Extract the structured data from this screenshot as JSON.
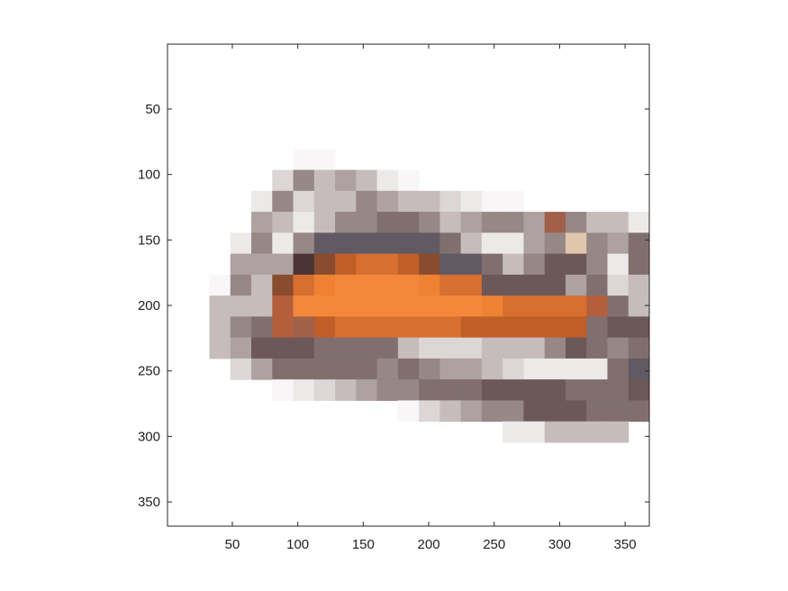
{
  "chart_data": {
    "type": "heatmap",
    "title": "",
    "xlabel": "",
    "ylabel": "",
    "xlim": [
      0.5,
      368.5
    ],
    "ylim": [
      368.5,
      0.5
    ],
    "y_reversed": true,
    "grid": false,
    "legend": "none",
    "cell_size": 16,
    "x_ticks": [
      50,
      100,
      150,
      200,
      250,
      300,
      350
    ],
    "y_ticks": [
      50,
      100,
      150,
      200,
      250,
      300,
      350
    ],
    "x_tick_labels": [
      "50",
      "100",
      "150",
      "200",
      "250",
      "300",
      "350"
    ],
    "y_tick_labels": [
      "50",
      "100",
      "150",
      "200",
      "250",
      "300",
      "350"
    ],
    "grid_rows": 23,
    "grid_cols": 23,
    "palette": {
      ".": "#ffffff",
      "a": "#f8f6f6",
      "b": "#ece9e9",
      "c": "#dcd6d6",
      "d": "#c6bcbc",
      "e": "#aea1a1",
      "f": "#978787",
      "g": "#816f6f",
      "h": "#6c5858",
      "i": "#5a4848",
      "j": "#4a3434",
      "k": "#615a64",
      "l": "#a0604a",
      "m": "#8a4c2e",
      "n": "#c05e28",
      "o": "#d76f30",
      "p": "#ee8232",
      "q": "#f4883a",
      "r": "#b45f3c",
      "s": "#e2c6ac"
    },
    "matrix": [
      ".......................",
      ".......................",
      ".......................",
      ".......................",
      ".......................",
      "......aa...............",
      ".....cfdedba...........",
      "....bfcddfeddcbaa......",
      "....edbdffggfdeffelfddb",
      "...bfbfkkkkkkgdbbefsfeg",
      "...eeejmnoonmkkgdfhhfbg",
      "..afdmopqqqqpoohhhhegcd",
      "..dddrqqqqqqqqqpoooorgd",
      "..dfgrlnoooooonnnnnnghh",
      "..dehhhggggdcccdddfhgfg",
      "...cegggggfgfeedcbbbbgk",
      ".....abcdeffggghhhhgggh",
      "...........acdeffhhhggg",
      "................bbdddd.",
      ".......................",
      ".......................",
      ".......................",
      "......................."
    ]
  }
}
